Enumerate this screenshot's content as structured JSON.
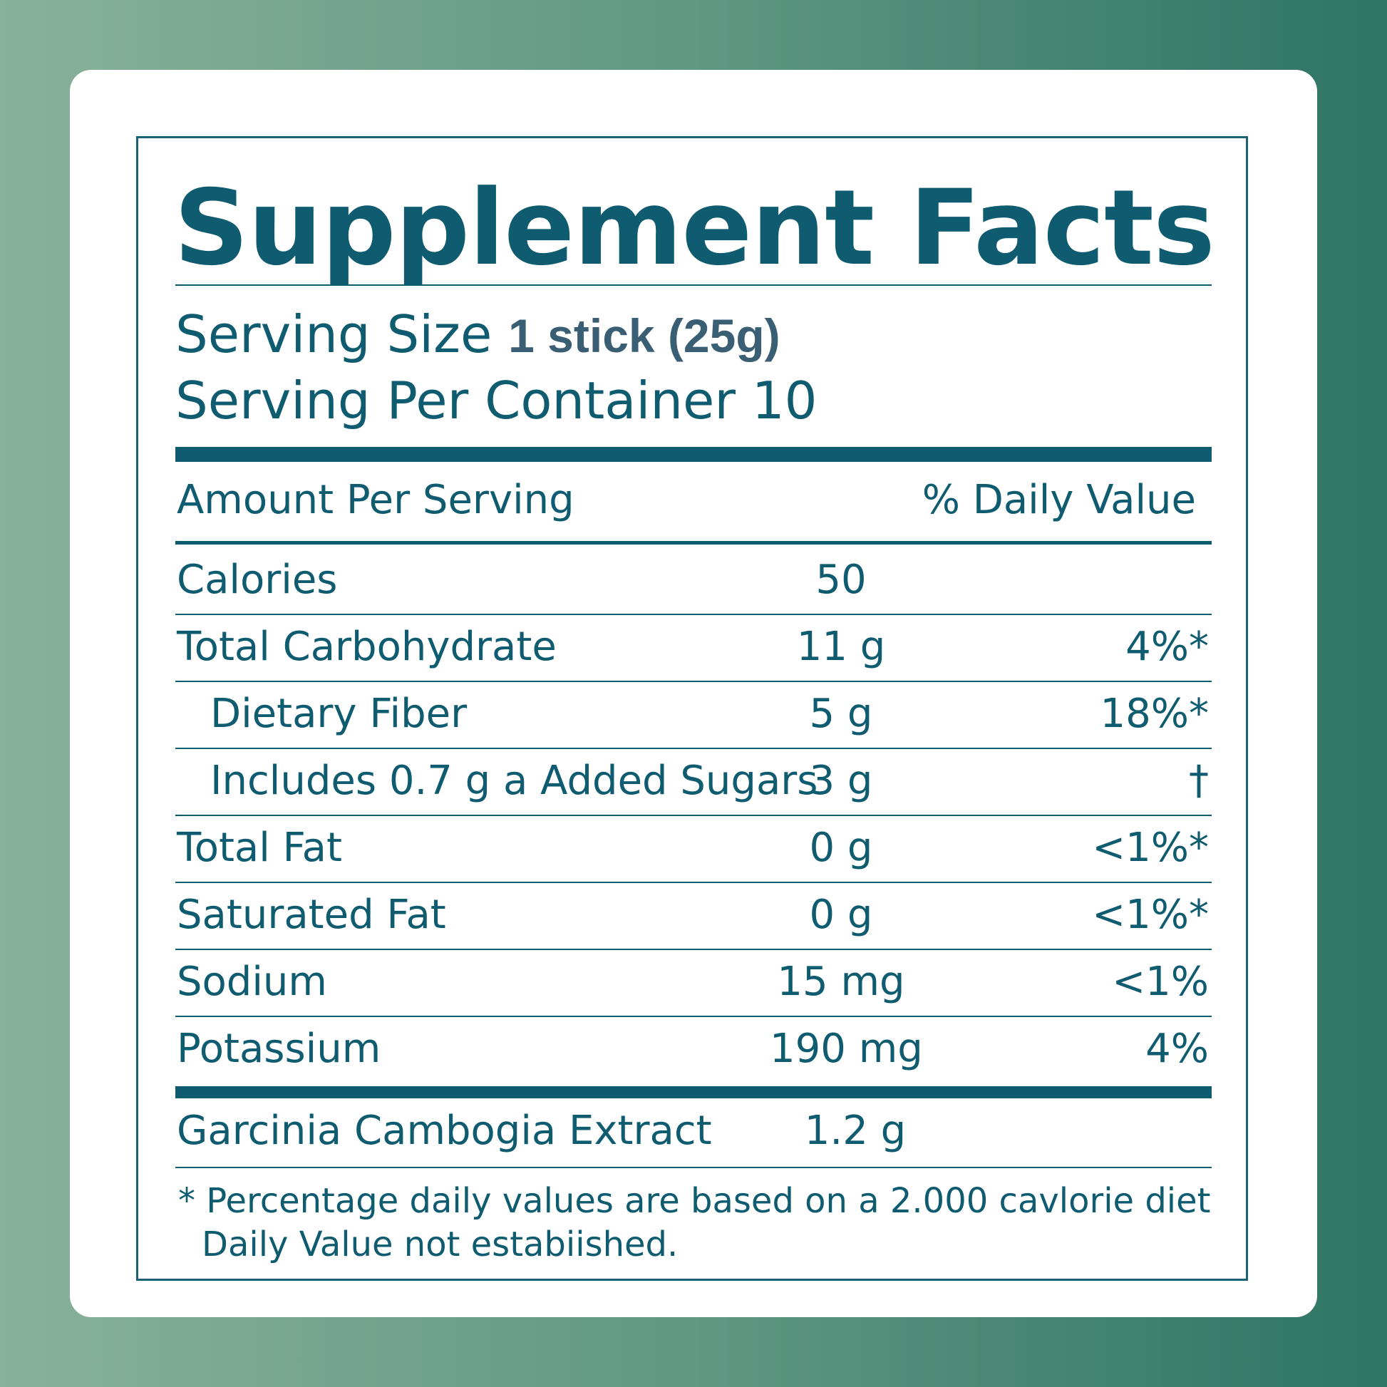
{
  "header": {
    "title": "Supplement Facts"
  },
  "serving": {
    "size_label": "Serving Size",
    "size_value": "1 stick (25g)",
    "per_container_label": "Serving Per Container",
    "per_container_value": "10"
  },
  "table": {
    "header": {
      "amount": "Amount Per Serving",
      "daily_value": "% Daily Value"
    },
    "rows": [
      {
        "name": "Calories",
        "amount": "50"
      },
      {
        "name": "Total Carbohydrate",
        "amount": "11 g",
        "daily_value": "4%*"
      },
      {
        "name": "Dietary Fiber",
        "amount": "5 g",
        "daily_value": "18%*"
      },
      {
        "name": "Includes 0.7 g a Added Sugars",
        "amount": "3 g",
        "daily_value": "†"
      },
      {
        "name": "Total Fat",
        "amount": "0 g",
        "daily_value": "<1%*"
      },
      {
        "name": "Saturated Fat",
        "amount": "0 g",
        "daily_value": "<1%*"
      },
      {
        "name": "Sodium",
        "amount": "15 mg",
        "daily_value": "<1%"
      },
      {
        "name": "Potassium",
        "amount": "190 mg",
        "daily_value": "4%"
      }
    ],
    "extract": {
      "name": "Garcinia Cambogia Extract",
      "amount": "1.2 g"
    }
  },
  "footnote": {
    "line1": "* Percentage daily values are based on a 2.000 cavlorie diet",
    "line2": "Daily Value not estabiished."
  }
}
